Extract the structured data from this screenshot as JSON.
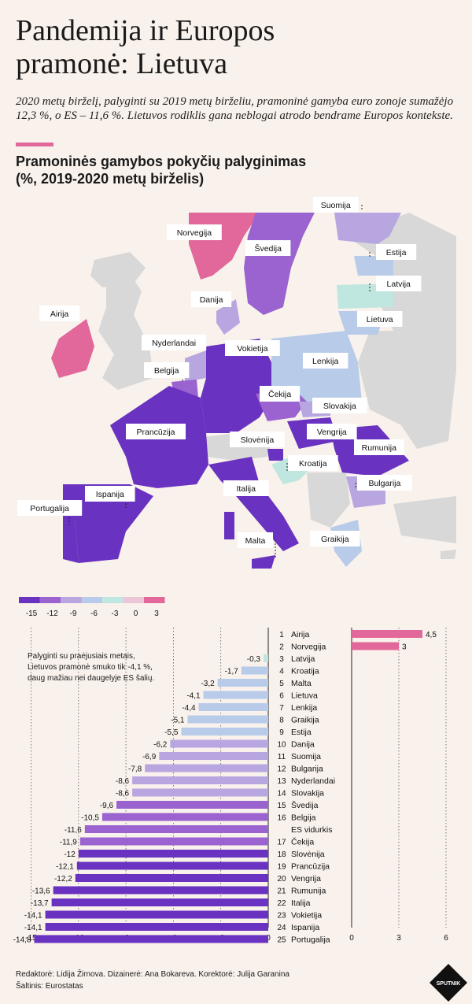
{
  "header": {
    "title_line1": "Pandemija ir Europos",
    "title_line2": "pramonė: Lietuva",
    "intro": "2020 metų birželį, palyginti su 2019 metų birželiu, pramoninė gamyba euro zonoje sumažėjo 12,3 %, o ES – 11,6 %. Lietuvos rodiklis gana neblogai atrodo bendrame Europos kontekste.",
    "subtitle_line1": "Pramoninės gamybos pokyčių palyginimas",
    "subtitle_line2": "(%, 2019-2020 metų birželis)"
  },
  "colors": {
    "background": "#f9f2ec",
    "accent": "#e2679a",
    "land_other": "#d8d8d8",
    "scale": [
      "#6a32c0",
      "#9a63cf",
      "#b8a6e0",
      "#b8cbe9",
      "#bfe6df",
      "#ecc6d6",
      "#e2679a"
    ]
  },
  "map": {
    "labels": [
      "Suomija",
      "Norvegija",
      "Švedija",
      "Estija",
      "Latvija",
      "Danija",
      "Lietuva",
      "Airija",
      "Nyderlandai",
      "Vokietija",
      "Lenkija",
      "Belgija",
      "Čekija",
      "Slovakija",
      "Prancūzija",
      "Slovėnija",
      "Vengrija",
      "Rumunija",
      "Kroatija",
      "Bulgarija",
      "Italija",
      "Ispanija",
      "Portugalija",
      "Malta",
      "Graikija"
    ]
  },
  "legend": {
    "ticks": [
      "-15",
      "-12",
      "-9",
      "-6",
      "-3",
      "0",
      "3"
    ]
  },
  "note": {
    "line1": "Palyginti su praėjusiais metais,",
    "line2": "Lietuvos pramonė smuko tik -4,1 %,",
    "line3": "daug mažiau nei daugelyje ES šalių."
  },
  "credits": {
    "line1": "Redaktorė: Lidija Žirnova. Dizainerė: Ana Bokareva. Korektorė: Julija Garanina",
    "line2": "Šaltinis: Eurostatas"
  },
  "logo_text": "SPUTNIK",
  "chart_data": {
    "type": "bar",
    "orientation": "horizontal",
    "title": "Pramoninės gamybos pokyčių palyginimas (%, 2019-2020 metų birželis)",
    "xlim_negative": [
      -15,
      0
    ],
    "xlim_positive": [
      0,
      6
    ],
    "ticks_negative": [
      "-15",
      "-12",
      "-9",
      "-6",
      "-3",
      "0"
    ],
    "ticks_positive": [
      "0",
      "3",
      "6"
    ],
    "rows": [
      {
        "rank": "1",
        "country": "Airija",
        "value": 4.5,
        "label": "4,5"
      },
      {
        "rank": "2",
        "country": "Norvegija",
        "value": 3,
        "label": "3"
      },
      {
        "rank": "3",
        "country": "Latvija",
        "value": -0.3,
        "label": "-0,3"
      },
      {
        "rank": "4",
        "country": "Kroatija",
        "value": -1.7,
        "label": "-1,7"
      },
      {
        "rank": "5",
        "country": "Malta",
        "value": -3.2,
        "label": "-3,2"
      },
      {
        "rank": "6",
        "country": "Lietuva",
        "value": -4.1,
        "label": "-4,1"
      },
      {
        "rank": "7",
        "country": "Lenkija",
        "value": -4.4,
        "label": "-4,4"
      },
      {
        "rank": "8",
        "country": "Graikija",
        "value": -5.1,
        "label": "-5,1"
      },
      {
        "rank": "9",
        "country": "Estija",
        "value": -5.5,
        "label": "-5,5"
      },
      {
        "rank": "10",
        "country": "Danija",
        "value": -6.2,
        "label": "-6,2"
      },
      {
        "rank": "11",
        "country": "Suomija",
        "value": -6.9,
        "label": "-6,9"
      },
      {
        "rank": "12",
        "country": "Bulgarija",
        "value": -7.8,
        "label": "-7,8"
      },
      {
        "rank": "13",
        "country": "Nyderlandai",
        "value": -8.6,
        "label": "-8,6"
      },
      {
        "rank": "14",
        "country": "Slovakija",
        "value": -8.6,
        "label": "-8,6"
      },
      {
        "rank": "15",
        "country": "Švedija",
        "value": -9.6,
        "label": "-9,6"
      },
      {
        "rank": "16",
        "country": "Belgija",
        "value": -10.5,
        "label": "-10,5"
      },
      {
        "rank": "",
        "country": "ES vidurkis",
        "value": -11.6,
        "label": "-11,6"
      },
      {
        "rank": "17",
        "country": "Čekija",
        "value": -11.9,
        "label": "-11,9"
      },
      {
        "rank": "18",
        "country": "Slovėnija",
        "value": -12,
        "label": "-12"
      },
      {
        "rank": "19",
        "country": "Prancūzija",
        "value": -12.1,
        "label": "-12,1"
      },
      {
        "rank": "20",
        "country": "Vengrija",
        "value": -12.2,
        "label": "-12,2"
      },
      {
        "rank": "21",
        "country": "Rumunija",
        "value": -13.6,
        "label": "-13,6"
      },
      {
        "rank": "22",
        "country": "Italija",
        "value": -13.7,
        "label": "-13,7"
      },
      {
        "rank": "23",
        "country": "Vokietija",
        "value": -14.1,
        "label": "-14,1"
      },
      {
        "rank": "24",
        "country": "Ispanija",
        "value": -14.1,
        "label": "-14,1"
      },
      {
        "rank": "25",
        "country": "Portugalija",
        "value": -14.8,
        "label": "-14,8"
      }
    ]
  }
}
